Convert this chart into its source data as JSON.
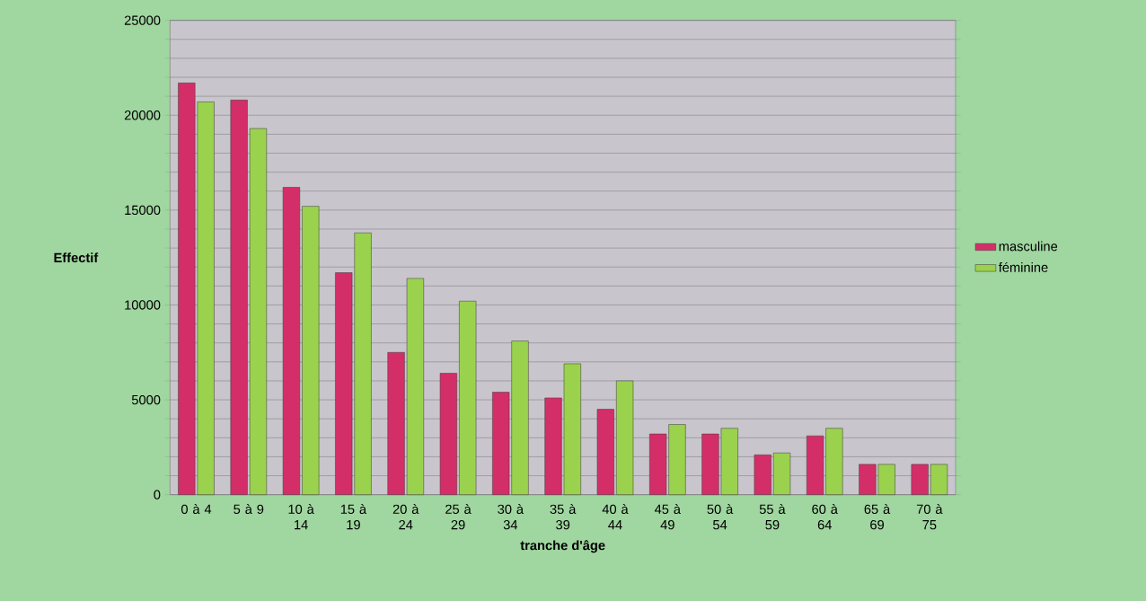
{
  "chart_data": {
    "type": "bar",
    "xlabel": "tranche d'âge",
    "ylabel": "Effectif",
    "categories": [
      "0 à 4",
      "5 à 9",
      "10 à 14",
      "15 à 19",
      "20 à 24",
      "25 à 29",
      "30 à 34",
      "35 à 39",
      "40 à 44",
      "45 à 49",
      "50 à 54",
      "55 à 59",
      "60 à 64",
      "65 à 69",
      "70 à 75"
    ],
    "series": [
      {
        "name": "masculine",
        "color": "#d42e68",
        "values": [
          21700,
          20800,
          16200,
          11700,
          7500,
          6400,
          5400,
          5100,
          4500,
          3200,
          3200,
          2100,
          3100,
          1600,
          1600
        ]
      },
      {
        "name": "féminine",
        "color": "#9ad24e",
        "values": [
          20700,
          19300,
          15200,
          13800,
          11400,
          10200,
          8100,
          6900,
          6000,
          3700,
          3500,
          2200,
          3500,
          1600,
          1600
        ]
      }
    ],
    "ylim": [
      0,
      25000
    ],
    "yticks": [
      0,
      {
        "value": 1000,
        "label": null
      },
      {
        "value": 2000,
        "label": null
      },
      {
        "value": 3000,
        "label": null
      },
      {
        "value": 4000,
        "label": null
      },
      5000,
      {
        "value": 6000,
        "label": null
      },
      {
        "value": 7000,
        "label": null
      },
      {
        "value": 8000,
        "label": null
      },
      {
        "value": 9000,
        "label": null
      },
      10000,
      {
        "value": 11000,
        "label": null
      },
      {
        "value": 12000,
        "label": null
      },
      {
        "value": 13000,
        "label": null
      },
      {
        "value": 14000,
        "label": null
      },
      15000,
      {
        "value": 16000,
        "label": null
      },
      {
        "value": 17000,
        "label": null
      },
      {
        "value": 18000,
        "label": null
      },
      {
        "value": 19000,
        "label": null
      },
      20000,
      {
        "value": 21000,
        "label": null
      },
      {
        "value": 22000,
        "label": null
      },
      {
        "value": 23000,
        "label": null
      },
      {
        "value": 24000,
        "label": null
      },
      25000
    ],
    "grid": "y",
    "legend": "right"
  }
}
